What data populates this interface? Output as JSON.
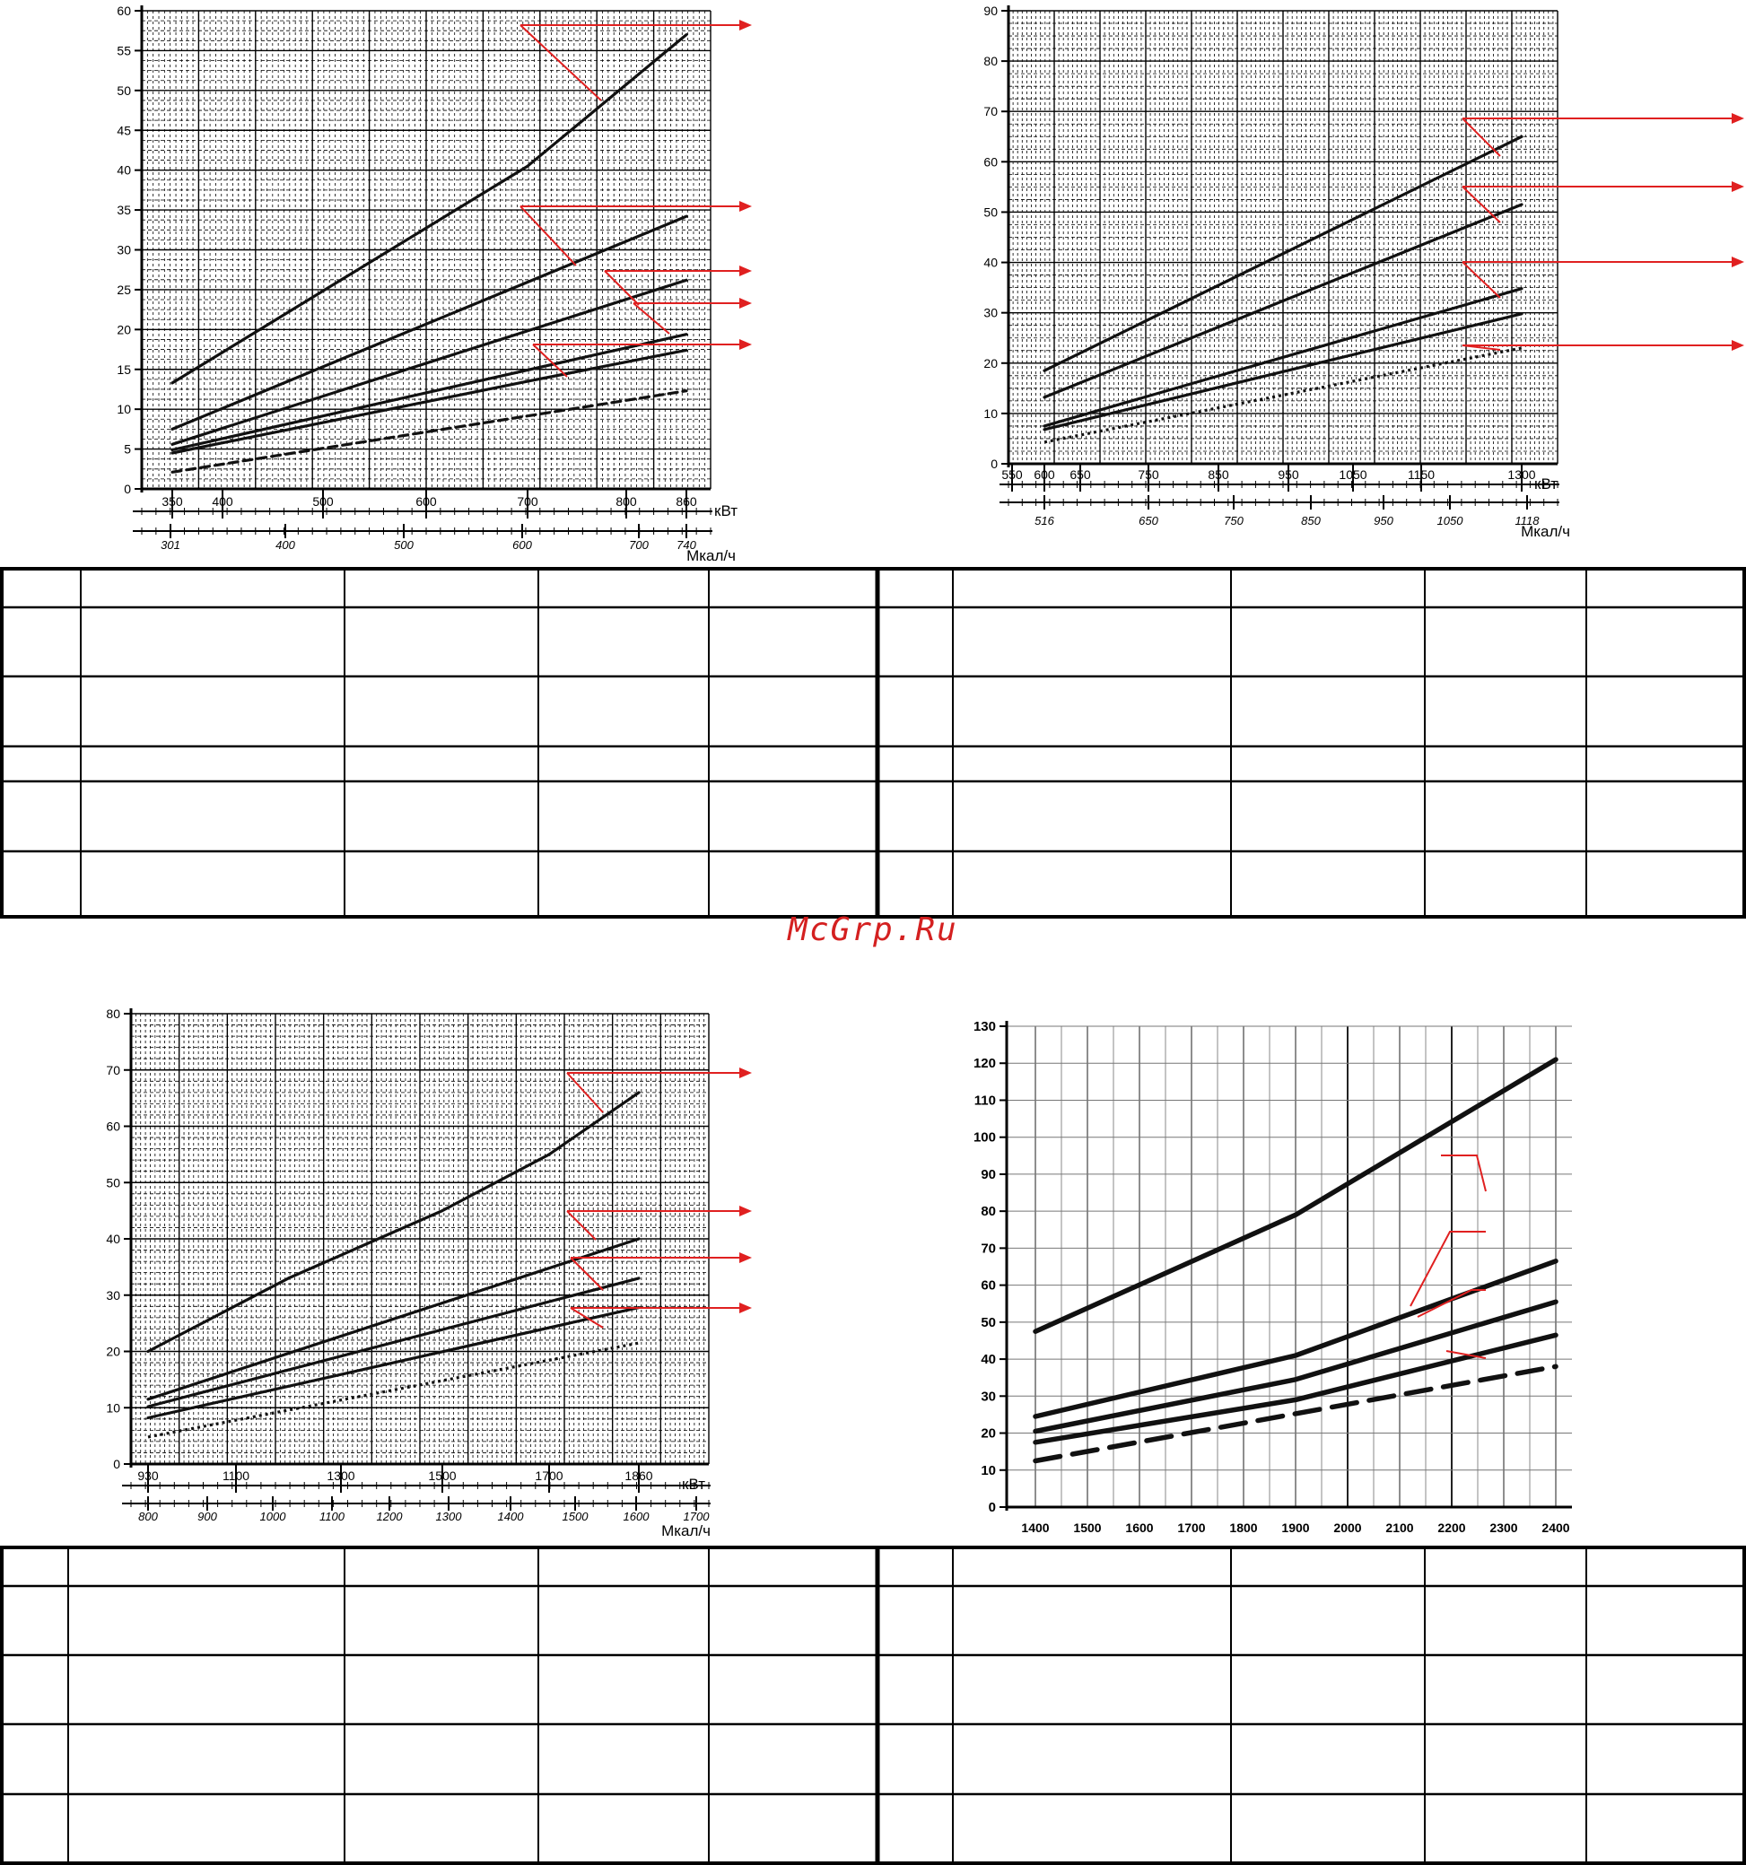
{
  "watermark": {
    "text": "McGrp.Ru",
    "color": "#d42020"
  },
  "colors": {
    "curve": "#111111",
    "pointer": "#e02020",
    "grid": "#000000"
  },
  "chart_data": [
    {
      "type": "line",
      "yticks": [
        0,
        5,
        10,
        15,
        20,
        25,
        30,
        35,
        40,
        45,
        50,
        55,
        60
      ],
      "ylim": [
        0,
        60
      ],
      "x_primary": {
        "ticks": [
          350,
          400,
          500,
          600,
          700,
          800,
          860
        ],
        "unit": "кВт"
      },
      "x_secondary": {
        "ticks": [
          "301",
          "400",
          "500",
          "600",
          "700",
          "740"
        ],
        "unit": "Мкал/ч"
      },
      "series": [
        {
          "style": "solid",
          "x": [
            350,
            700,
            860
          ],
          "y": [
            13.3,
            40.5,
            57
          ]
        },
        {
          "style": "solid",
          "x": [
            350,
            860
          ],
          "y": [
            7.5,
            34.2
          ]
        },
        {
          "style": "solid",
          "x": [
            350,
            860
          ],
          "y": [
            5.6,
            26.2
          ]
        },
        {
          "style": "solid",
          "x": [
            350,
            860
          ],
          "y": [
            4.9,
            19.4
          ]
        },
        {
          "style": "solid",
          "x": [
            350,
            700,
            860
          ],
          "y": [
            4.5,
            13.5,
            17.4
          ]
        },
        {
          "style": "dashed",
          "x": [
            350,
            860
          ],
          "y": [
            2.1,
            12.3
          ]
        }
      ]
    },
    {
      "type": "line",
      "yticks": [
        0,
        10,
        20,
        30,
        40,
        50,
        60,
        70,
        80,
        90
      ],
      "ylim": [
        0,
        90
      ],
      "x_primary": {
        "ticks": [
          550,
          600,
          650,
          750,
          850,
          950,
          1050,
          1150,
          1300
        ],
        "unit": "кВт"
      },
      "x_secondary": {
        "ticks": [
          "516",
          "650",
          "750",
          "850",
          "950",
          "1050",
          "1118"
        ],
        "unit": "Мкал/ч"
      },
      "series": [
        {
          "style": "solid",
          "x": [
            600,
            1300
          ],
          "y": [
            18.5,
            65
          ]
        },
        {
          "style": "solid",
          "x": [
            600,
            1300
          ],
          "y": [
            13.2,
            51.5
          ]
        },
        {
          "style": "solid",
          "x": [
            600,
            1300
          ],
          "y": [
            7.5,
            34.8
          ]
        },
        {
          "style": "solid",
          "x": [
            600,
            1300
          ],
          "y": [
            6.8,
            29.8
          ]
        },
        {
          "style": "dotted",
          "x": [
            600,
            1300
          ],
          "y": [
            4.3,
            23
          ]
        }
      ]
    },
    {
      "type": "line",
      "yticks": [
        0,
        10,
        20,
        30,
        40,
        50,
        60,
        70,
        80
      ],
      "ylim": [
        0,
        80
      ],
      "x_primary": {
        "ticks": [
          930,
          1100,
          1300,
          1500,
          1700,
          1860
        ],
        "unit": "кВт"
      },
      "x_secondary": {
        "ticks": [
          "800",
          "900",
          "1000",
          "1100",
          "1200",
          "1300",
          "1400",
          "1500",
          "1600",
          "1700"
        ],
        "unit": "Мкал/ч"
      },
      "series": [
        {
          "style": "solid",
          "x": [
            930,
            1200,
            1500,
            1700,
            1860
          ],
          "y": [
            20,
            33,
            45,
            55,
            66
          ]
        },
        {
          "style": "solid",
          "x": [
            930,
            1860
          ],
          "y": [
            11.5,
            40
          ]
        },
        {
          "style": "solid",
          "x": [
            930,
            1860
          ],
          "y": [
            10.2,
            33
          ]
        },
        {
          "style": "solid",
          "x": [
            930,
            1860
          ],
          "y": [
            8.2,
            27.8
          ]
        },
        {
          "style": "dotted",
          "x": [
            930,
            1860
          ],
          "y": [
            4.8,
            21.5
          ]
        }
      ]
    },
    {
      "type": "line",
      "yticks": [
        0,
        10,
        20,
        30,
        40,
        50,
        60,
        70,
        80,
        90,
        100,
        110,
        120,
        130
      ],
      "ylim": [
        0,
        130
      ],
      "x_primary": {
        "ticks": [
          1400,
          1500,
          1600,
          1700,
          1800,
          1900,
          2000,
          2100,
          2200,
          2300,
          2400
        ],
        "unit": ""
      },
      "series": [
        {
          "style": "solid",
          "x": [
            1400,
            1900,
            2400
          ],
          "y": [
            47.5,
            79,
            121
          ]
        },
        {
          "style": "solid",
          "x": [
            1400,
            1900,
            2400
          ],
          "y": [
            24.5,
            41,
            66.5
          ]
        },
        {
          "style": "solid",
          "x": [
            1400,
            1900,
            2400
          ],
          "y": [
            20.5,
            34.5,
            55.5
          ]
        },
        {
          "style": "solid",
          "x": [
            1400,
            1900,
            2400
          ],
          "y": [
            17.5,
            29,
            46.5
          ]
        },
        {
          "style": "dashed",
          "x": [
            1400,
            2400
          ],
          "y": [
            12.5,
            38
          ]
        }
      ]
    }
  ]
}
